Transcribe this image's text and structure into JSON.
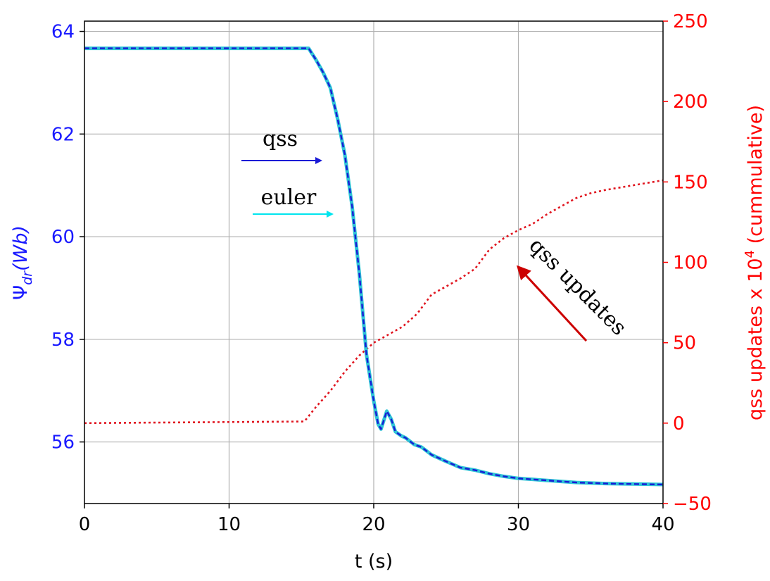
{
  "chart_data": {
    "type": "line",
    "xlabel": "t (s)",
    "xlim": [
      0,
      40
    ],
    "x_ticks": [
      0,
      10,
      20,
      30,
      40
    ],
    "left_axis": {
      "label_base": "Ψ",
      "label_sub": "dr",
      "label_rest": "(Wb)",
      "ylim": [
        54.8,
        64.2
      ],
      "ticks": [
        56,
        58,
        60,
        62,
        64
      ],
      "color": "#1a1aff"
    },
    "right_axis": {
      "label_main": "qss updates x 10",
      "label_sup": "4",
      "label_tail": " (cummulative)",
      "ylim": [
        -50,
        250
      ],
      "ticks": [
        -50,
        0,
        50,
        100,
        150,
        200,
        250
      ],
      "tick_labels": [
        "−50",
        "0",
        "50",
        "100",
        "150",
        "200",
        "250"
      ],
      "color": "#ff0000"
    },
    "grid": true,
    "series": [
      {
        "name": "euler",
        "axis": "left",
        "color": "#2ec4d6",
        "style": "solid",
        "points": [
          [
            0,
            63.67
          ],
          [
            15.5,
            63.67
          ],
          [
            16,
            63.45
          ],
          [
            16.5,
            63.2
          ],
          [
            17,
            62.9
          ],
          [
            17.5,
            62.3
          ],
          [
            18,
            61.6
          ],
          [
            18.5,
            60.6
          ],
          [
            19,
            59.3
          ],
          [
            19.5,
            57.7
          ],
          [
            20,
            56.8
          ],
          [
            20.3,
            56.35
          ],
          [
            20.5,
            56.25
          ],
          [
            20.9,
            56.6
          ],
          [
            21.2,
            56.45
          ],
          [
            21.5,
            56.2
          ],
          [
            21.9,
            56.12
          ],
          [
            22.2,
            56.08
          ],
          [
            22.8,
            55.95
          ],
          [
            23.3,
            55.9
          ],
          [
            24,
            55.75
          ],
          [
            25,
            55.62
          ],
          [
            26,
            55.5
          ],
          [
            27,
            55.45
          ],
          [
            28,
            55.38
          ],
          [
            29,
            55.33
          ],
          [
            30,
            55.29
          ],
          [
            32,
            55.25
          ],
          [
            34,
            55.21
          ],
          [
            36,
            55.19
          ],
          [
            38,
            55.18
          ],
          [
            40,
            55.17
          ]
        ]
      },
      {
        "name": "qss",
        "axis": "left",
        "color": "#1a1ad6",
        "style": "dashed",
        "points": [
          [
            0,
            63.67
          ],
          [
            15.5,
            63.67
          ],
          [
            16,
            63.45
          ],
          [
            16.5,
            63.2
          ],
          [
            17,
            62.9
          ],
          [
            17.5,
            62.3
          ],
          [
            18,
            61.6
          ],
          [
            18.5,
            60.6
          ],
          [
            19,
            59.3
          ],
          [
            19.5,
            57.7
          ],
          [
            20,
            56.8
          ],
          [
            20.3,
            56.35
          ],
          [
            20.5,
            56.25
          ],
          [
            20.9,
            56.6
          ],
          [
            21.2,
            56.45
          ],
          [
            21.5,
            56.2
          ],
          [
            21.9,
            56.12
          ],
          [
            22.2,
            56.08
          ],
          [
            22.8,
            55.95
          ],
          [
            23.3,
            55.9
          ],
          [
            24,
            55.75
          ],
          [
            25,
            55.62
          ],
          [
            26,
            55.5
          ],
          [
            27,
            55.45
          ],
          [
            28,
            55.38
          ],
          [
            29,
            55.33
          ],
          [
            30,
            55.29
          ],
          [
            32,
            55.25
          ],
          [
            34,
            55.21
          ],
          [
            36,
            55.19
          ],
          [
            38,
            55.18
          ],
          [
            40,
            55.17
          ]
        ]
      },
      {
        "name": "qss updates",
        "axis": "right",
        "color": "#e0141e",
        "style": "dotted",
        "points": [
          [
            0,
            0
          ],
          [
            15.2,
            1
          ],
          [
            16,
            10
          ],
          [
            17,
            20
          ],
          [
            18,
            32
          ],
          [
            19,
            42
          ],
          [
            20,
            50
          ],
          [
            21,
            55
          ],
          [
            22,
            60
          ],
          [
            23,
            68
          ],
          [
            24,
            80
          ],
          [
            25,
            85
          ],
          [
            26,
            90
          ],
          [
            27,
            96
          ],
          [
            28,
            108
          ],
          [
            29,
            115
          ],
          [
            30,
            120
          ],
          [
            31,
            124
          ],
          [
            32,
            130
          ],
          [
            33,
            135
          ],
          [
            34,
            140
          ],
          [
            35,
            143
          ],
          [
            36,
            145
          ],
          [
            38,
            148
          ],
          [
            40,
            151
          ]
        ]
      }
    ],
    "annotations": {
      "qss_label": "qss",
      "euler_label": "euler",
      "updates_label": "qss updates"
    }
  }
}
